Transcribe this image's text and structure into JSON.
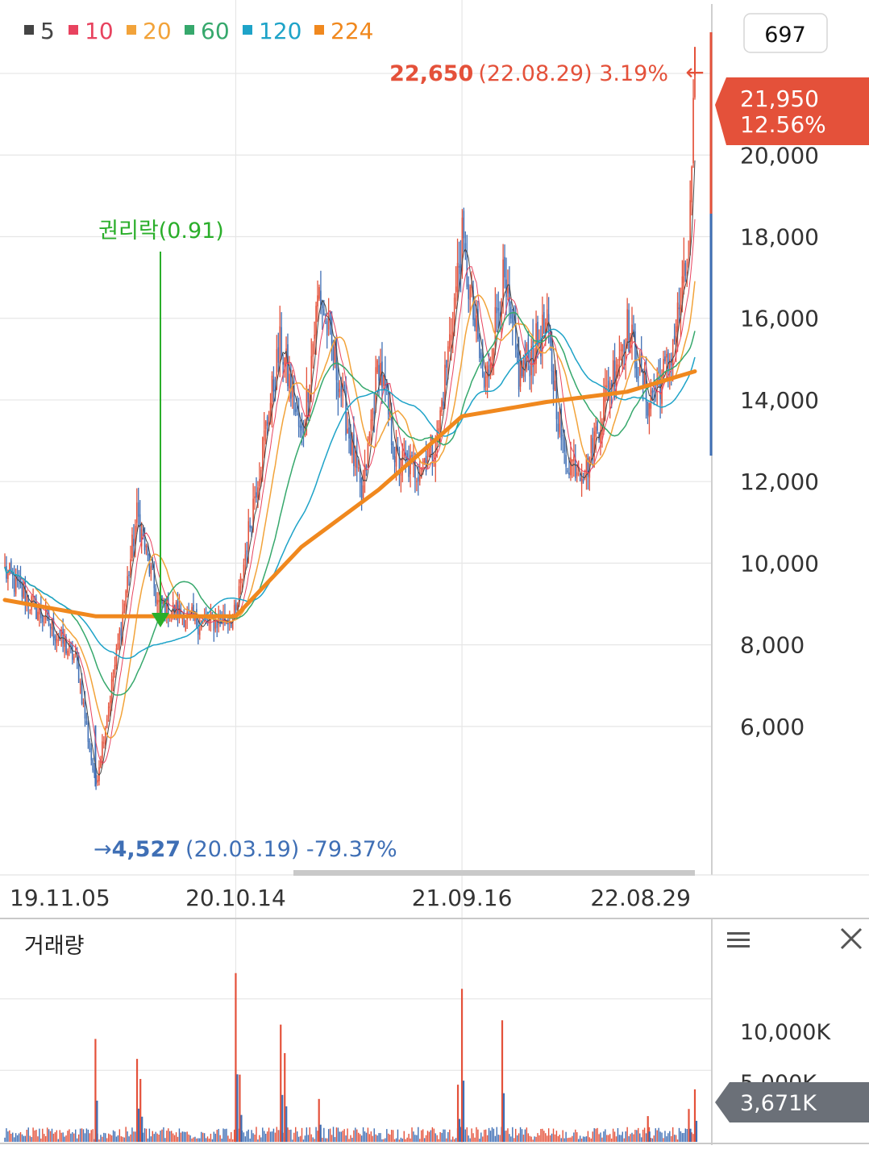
{
  "colors": {
    "up": "#e4513a",
    "down": "#3f6fb5",
    "ma5": "#444444",
    "ma10": "#e8435f",
    "ma20": "#f2a33a",
    "ma60": "#36a86c",
    "ma120": "#1ea3c8",
    "ma224": "#f0881e",
    "annotation_green": "#2aae2a",
    "grid": "#e6e6e6",
    "axis_text": "#333333",
    "volume_badge": "#6b7078"
  },
  "legend": [
    {
      "label": "5",
      "color": "#444444"
    },
    {
      "label": "10",
      "color": "#e8435f"
    },
    {
      "label": "20",
      "color": "#f2a33a"
    },
    {
      "label": "60",
      "color": "#36a86c"
    },
    {
      "label": "120",
      "color": "#1ea3c8"
    },
    {
      "label": "224",
      "color": "#f0881e"
    }
  ],
  "count_box": "697",
  "current_price": {
    "price": "21,950",
    "change": "12.56%"
  },
  "high_marker": {
    "arrow": "←",
    "value": "22,650",
    "detail": "(22.08.29) 3.19%"
  },
  "low_marker": {
    "arrow": "→",
    "value": "4,527",
    "detail": "(20.03.19) -79.37%"
  },
  "event_marker": {
    "label": "권리락(0.91)"
  },
  "volume_panel": {
    "title": "거래량",
    "menu_icon": "menu-icon",
    "close_icon": "close-icon",
    "tick_label": "10,000K",
    "tick_label_hidden": "5,000K",
    "current_volume": "3,671K"
  },
  "chart_data": {
    "type": "candlestick",
    "y_ticks": [
      "6,000",
      "8,000",
      "10,000",
      "12,000",
      "14,000",
      "16,000",
      "18,000",
      "20,000"
    ],
    "ylim": [
      2500,
      23700
    ],
    "x_ticks": [
      "19.11.05",
      "20.10.14",
      "21.09.16",
      "22.08.29"
    ],
    "price_path": [
      {
        "d": "19.11.05",
        "p": 9800
      },
      {
        "d": "19.12.05",
        "p": 9200
      },
      {
        "d": "20.01.10",
        "p": 8500
      },
      {
        "d": "20.02.20",
        "p": 7600
      },
      {
        "d": "20.03.19",
        "p": 4527
      },
      {
        "d": "20.04.20",
        "p": 7800
      },
      {
        "d": "20.05.20",
        "p": 11200
      },
      {
        "d": "20.06.20",
        "p": 9000
      },
      {
        "d": "20.07.20",
        "p": 8800
      },
      {
        "d": "20.08.25",
        "p": 8500
      },
      {
        "d": "20.10.14",
        "p": 8700
      },
      {
        "d": "20.11.10",
        "p": 11600
      },
      {
        "d": "20.12.20",
        "p": 15400
      },
      {
        "d": "21.01.20",
        "p": 13000
      },
      {
        "d": "21.02.15",
        "p": 16700
      },
      {
        "d": "21.03.20",
        "p": 14200
      },
      {
        "d": "21.04.20",
        "p": 11500
      },
      {
        "d": "21.05.15",
        "p": 15000
      },
      {
        "d": "21.06.10",
        "p": 12500
      },
      {
        "d": "21.07.10",
        "p": 12300
      },
      {
        "d": "21.08.10",
        "p": 13000
      },
      {
        "d": "21.09.16",
        "p": 17900
      },
      {
        "d": "21.10.20",
        "p": 14200
      },
      {
        "d": "21.11.15",
        "p": 17000
      },
      {
        "d": "21.12.10",
        "p": 14600
      },
      {
        "d": "22.01.20",
        "p": 15800
      },
      {
        "d": "22.02.15",
        "p": 12600
      },
      {
        "d": "22.03.20",
        "p": 12300
      },
      {
        "d": "22.04.20",
        "p": 14200
      },
      {
        "d": "22.05.20",
        "p": 15800
      },
      {
        "d": "22.06.20",
        "p": 14000
      },
      {
        "d": "22.07.20",
        "p": 14800
      },
      {
        "d": "22.08.20",
        "p": 17500
      },
      {
        "d": "22.08.29",
        "p": 21950
      }
    ],
    "ma224_path": [
      {
        "d": "19.11.05",
        "p": 9100
      },
      {
        "d": "20.03.19",
        "p": 8700
      },
      {
        "d": "20.10.14",
        "p": 8700
      },
      {
        "d": "21.01.20",
        "p": 10400
      },
      {
        "d": "21.05.15",
        "p": 11800
      },
      {
        "d": "21.09.16",
        "p": 13600
      },
      {
        "d": "22.01.20",
        "p": 13950
      },
      {
        "d": "22.05.20",
        "p": 14200
      },
      {
        "d": "22.08.29",
        "p": 14700
      }
    ],
    "high": {
      "date": "22.08.29",
      "value": 22650
    },
    "low": {
      "date": "20.03.19",
      "value": 4527
    },
    "current": {
      "date": "22.08.29",
      "value": 21950
    },
    "volume_spikes": [
      {
        "d": "20.03.19",
        "v": 7200
      },
      {
        "d": "20.05.20",
        "v": 5800
      },
      {
        "d": "20.05.25",
        "v": 4400
      },
      {
        "d": "20.10.14",
        "v": 11800
      },
      {
        "d": "20.10.20",
        "v": 4700
      },
      {
        "d": "20.12.20",
        "v": 8200
      },
      {
        "d": "20.12.26",
        "v": 6200
      },
      {
        "d": "21.02.15",
        "v": 3000
      },
      {
        "d": "21.09.16",
        "v": 10700
      },
      {
        "d": "21.09.10",
        "v": 4000
      },
      {
        "d": "21.11.15",
        "v": 8500
      },
      {
        "d": "22.06.20",
        "v": 1800
      },
      {
        "d": "22.08.20",
        "v": 2300
      },
      {
        "d": "22.08.29",
        "v": 3671
      }
    ],
    "volume_ylim": [
      0,
      15000
    ]
  }
}
